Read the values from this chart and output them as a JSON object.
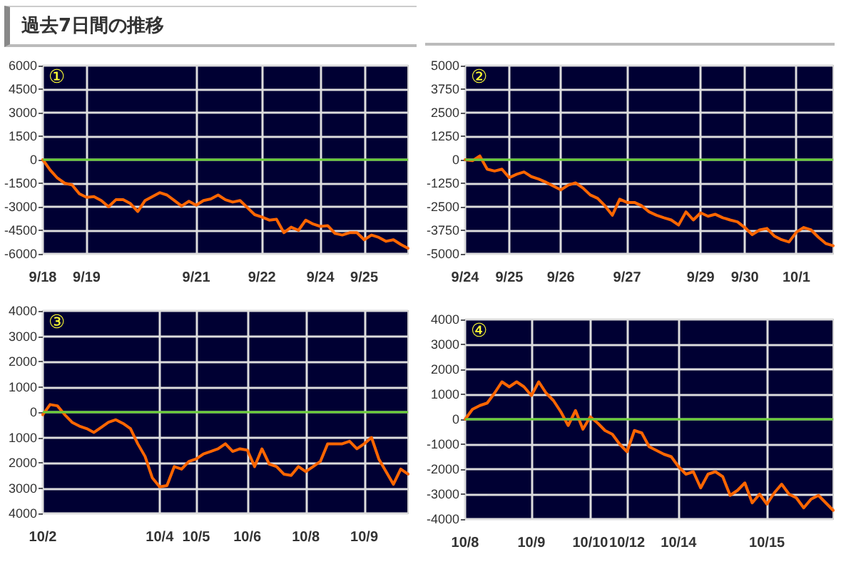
{
  "chart_data": [
    {
      "type": "line",
      "title": "過去7日間の推移",
      "annotations": [
        "①"
      ],
      "grid": true,
      "marker": "none",
      "line_style": "solid",
      "categories": [
        "9/18",
        null,
        null,
        null,
        null,
        null,
        "9/19",
        null,
        null,
        null,
        null,
        null,
        null,
        null,
        null,
        null,
        null,
        null,
        null,
        null,
        null,
        "9/21",
        null,
        null,
        null,
        null,
        null,
        null,
        null,
        null,
        "9/22",
        null,
        null,
        null,
        null,
        null,
        null,
        null,
        "9/24",
        null,
        null,
        null,
        null,
        null,
        "9/25",
        null,
        null,
        null,
        null,
        null,
        null
      ],
      "series": [
        {
          "color": "#ff6600",
          "values": [
            0,
            -650,
            -1170,
            -1500,
            -1600,
            -2170,
            -2400,
            -2350,
            -2600,
            -3000,
            -2550,
            -2550,
            -2800,
            -3300,
            -2600,
            -2350,
            -2100,
            -2250,
            -2600,
            -2950,
            -2650,
            -2900,
            -2600,
            -2500,
            -2250,
            -2550,
            -2700,
            -2600,
            -3050,
            -3500,
            -3650,
            -3850,
            -3800,
            -4650,
            -4300,
            -4500,
            -3850,
            -4100,
            -4250,
            -4200,
            -4700,
            -4800,
            -4650,
            -4650,
            -5100,
            -4800,
            -4950,
            -5200,
            -5100,
            -5400,
            -5650
          ]
        }
      ],
      "ylim": [
        -6000,
        6000
      ],
      "yticks": [
        -6000,
        -4500,
        -3000,
        -1500,
        0,
        1500,
        3000,
        4500,
        6000
      ],
      "ref_lines": [
        {
          "axis": "y",
          "value": 0,
          "color": "#66cc33"
        }
      ]
    },
    {
      "type": "line",
      "annotations": [
        "②"
      ],
      "grid": true,
      "marker": "none",
      "line_style": "solid",
      "categories": [
        "9/24",
        null,
        null,
        null,
        null,
        null,
        "9/25",
        null,
        null,
        null,
        null,
        null,
        null,
        "9/26",
        null,
        null,
        null,
        null,
        null,
        null,
        null,
        null,
        "9/27",
        null,
        null,
        null,
        null,
        null,
        null,
        null,
        null,
        null,
        "9/29",
        null,
        null,
        null,
        null,
        null,
        "9/30",
        null,
        null,
        null,
        null,
        null,
        null,
        "10/1",
        null,
        null,
        null,
        null,
        null
      ],
      "series": [
        {
          "color": "#ff6600",
          "values": [
            0,
            -50,
            200,
            -500,
            -600,
            -500,
            -950,
            -770,
            -650,
            -900,
            -1030,
            -1200,
            -1400,
            -1600,
            -1350,
            -1230,
            -1500,
            -1870,
            -2050,
            -2450,
            -2950,
            -2100,
            -2270,
            -2270,
            -2450,
            -2770,
            -2950,
            -3080,
            -3200,
            -3470,
            -2770,
            -3200,
            -2820,
            -3000,
            -2900,
            -3080,
            -3200,
            -3300,
            -3600,
            -3980,
            -3730,
            -3650,
            -4050,
            -4250,
            -4370,
            -3850,
            -3600,
            -3730,
            -4120,
            -4450,
            -4570
          ]
        }
      ],
      "ylim": [
        -5000,
        5000
      ],
      "yticks": [
        -5000,
        -3750,
        -2500,
        -1250,
        0,
        1250,
        2500,
        3750,
        5000
      ],
      "ref_lines": [
        {
          "axis": "y",
          "value": 0,
          "color": "#66cc33"
        }
      ]
    },
    {
      "type": "line",
      "annotations": [
        "③"
      ],
      "grid": true,
      "marker": "none",
      "line_style": "solid",
      "categories": [
        "10/2",
        null,
        null,
        null,
        null,
        null,
        null,
        null,
        null,
        null,
        null,
        null,
        null,
        null,
        null,
        null,
        "10/4",
        null,
        null,
        null,
        null,
        "10/5",
        null,
        null,
        null,
        null,
        null,
        null,
        "10/6",
        null,
        null,
        null,
        null,
        null,
        null,
        null,
        "10/8",
        null,
        null,
        null,
        null,
        null,
        null,
        null,
        "10/9",
        null,
        null,
        null,
        null,
        null,
        null
      ],
      "series": [
        {
          "color": "#ff6600",
          "values": [
            -100,
            300,
            250,
            -100,
            -400,
            -550,
            -650,
            -800,
            -600,
            -400,
            -300,
            -450,
            -650,
            -1250,
            -1750,
            -2600,
            -2950,
            -2900,
            -2150,
            -2250,
            -1950,
            -1850,
            -1650,
            -1550,
            -1450,
            -1250,
            -1550,
            -1450,
            -1500,
            -2150,
            -1450,
            -2050,
            -2150,
            -2450,
            -2500,
            -2150,
            -2350,
            -2150,
            -1950,
            -1250,
            -1250,
            -1250,
            -1150,
            -1450,
            -1250,
            -1000,
            -1850,
            -2350,
            -2850,
            -2250,
            -2450
          ]
        }
      ],
      "ylim": [
        -4000,
        4000
      ],
      "yticks": [
        {
          "value": -4000,
          "label": "4000"
        },
        {
          "value": -3000,
          "label": "3000"
        },
        {
          "value": -2000,
          "label": "2000"
        },
        {
          "value": -1000,
          "label": "1000"
        },
        0,
        1000,
        2000,
        3000,
        4000
      ],
      "ref_lines": [
        {
          "axis": "y",
          "value": 0,
          "color": "#66cc33"
        }
      ]
    },
    {
      "type": "line",
      "annotations": [
        "④"
      ],
      "grid": true,
      "marker": "none",
      "line_style": "solid",
      "categories": [
        "10/8",
        null,
        null,
        null,
        null,
        null,
        null,
        null,
        null,
        "10/9",
        null,
        null,
        null,
        null,
        null,
        null,
        null,
        "10/10",
        null,
        null,
        null,
        null,
        "10/12",
        null,
        null,
        null,
        null,
        null,
        null,
        "10/14",
        null,
        null,
        null,
        null,
        null,
        null,
        null,
        null,
        null,
        null,
        null,
        "10/15",
        null,
        null,
        null,
        null,
        null,
        null,
        null,
        null,
        null
      ],
      "series": [
        {
          "color": "#ff6600",
          "values": [
            0,
            400,
            550,
            650,
            1050,
            1500,
            1300,
            1500,
            1300,
            950,
            1500,
            1050,
            750,
            300,
            -250,
            350,
            -400,
            100,
            -150,
            -450,
            -600,
            -1000,
            -1300,
            -450,
            -550,
            -1100,
            -1250,
            -1400,
            -1500,
            -1900,
            -2200,
            -2100,
            -2750,
            -2200,
            -2100,
            -2300,
            -3050,
            -2850,
            -2550,
            -3350,
            -3000,
            -3400,
            -2950,
            -2600,
            -3000,
            -3150,
            -3550,
            -3200,
            -3050,
            -3350,
            -3650
          ]
        }
      ],
      "ylim": [
        -4000,
        4000
      ],
      "yticks": [
        -4000,
        -3000,
        -2000,
        -1000,
        0,
        1000,
        2000,
        3000,
        4000
      ],
      "ref_lines": [
        {
          "axis": "y",
          "value": 0,
          "color": "#66cc33"
        }
      ]
    }
  ]
}
